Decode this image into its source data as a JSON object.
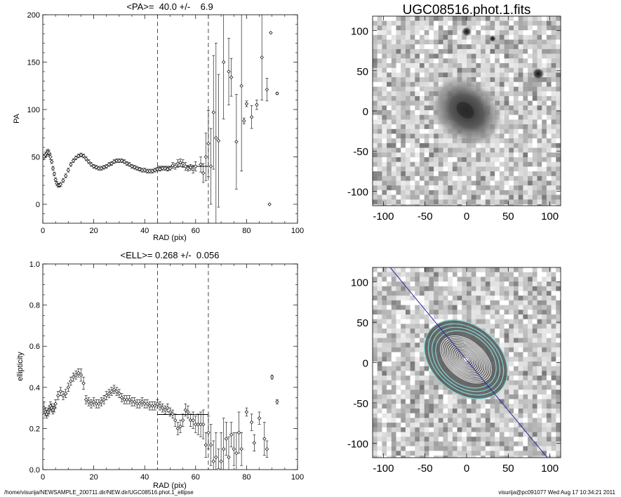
{
  "pa_panel": {
    "title": "<PA>=  40.0 +/-    6.9",
    "xlabel": "RAD (pix)",
    "ylabel": "PA",
    "xticks": [
      "0",
      "20",
      "40",
      "60",
      "80",
      "100"
    ],
    "yticks": [
      "0",
      "50",
      "100",
      "150",
      "200"
    ]
  },
  "ell_panel": {
    "title": "<ELL>= 0.268 +/-  0.056",
    "xlabel": "RAD (pix)",
    "ylabel": "ellipticity",
    "xticks": [
      "0",
      "20",
      "40",
      "60",
      "80",
      "100"
    ],
    "yticks": [
      "0.0",
      "0.2",
      "0.4",
      "0.6",
      "0.8",
      "1.0"
    ]
  },
  "image_panel": {
    "title": "UGC08516.phot.1.fits",
    "xticks": [
      "-100",
      "-50",
      "0",
      "50",
      "100"
    ],
    "yticks": [
      "-100",
      "-50",
      "0",
      "50",
      "100"
    ]
  },
  "contour_panel": {
    "xticks": [
      "-100",
      "-50",
      "0",
      "50",
      "100"
    ],
    "yticks": [
      "-100",
      "-50",
      "0",
      "50",
      "100"
    ]
  },
  "footer": {
    "path": "/home/visurija/NEWSAMPLE_200711.dir/NEW.dir/UGC08516.phot.1_ellipse",
    "user_stamp": "visurija@pc091077  Wed Aug 17 10:34:21 2011"
  },
  "colors": {
    "axis": "#000000",
    "cyan_contours": "#7fd6d6",
    "position_angle_line": "#2a2aa8"
  },
  "chart_data": [
    {
      "type": "scatter",
      "name": "position-angle-profile",
      "title": "<PA>=  40.0 +/-    6.9",
      "xlabel": "RAD (pix)",
      "ylabel": "PA",
      "xlim": [
        0,
        100
      ],
      "ylim": [
        -20,
        200
      ],
      "mean_value": 40.0,
      "mean_error": 6.9,
      "mean_line_x": [
        45,
        65
      ],
      "dashed_lines_x": [
        45,
        65
      ],
      "points": [
        [
          0.5,
          50,
          3
        ],
        [
          1,
          52,
          3
        ],
        [
          1.5,
          54,
          3
        ],
        [
          2,
          55,
          3
        ],
        [
          2.5,
          54,
          3
        ],
        [
          3,
          50,
          3
        ],
        [
          3.5,
          45,
          2
        ],
        [
          4,
          38,
          2
        ],
        [
          4.5,
          32,
          2
        ],
        [
          5,
          26,
          2
        ],
        [
          5.5,
          22,
          2
        ],
        [
          6,
          20,
          2
        ],
        [
          6.5,
          20,
          2
        ],
        [
          7,
          21,
          2
        ],
        [
          8,
          25,
          2
        ],
        [
          9,
          30,
          2
        ],
        [
          10,
          36,
          2
        ],
        [
          11,
          42,
          2
        ],
        [
          12,
          46,
          2
        ],
        [
          13,
          49,
          2
        ],
        [
          14,
          51,
          2
        ],
        [
          15,
          52,
          2
        ],
        [
          16,
          51,
          2
        ],
        [
          17,
          48,
          2
        ],
        [
          18,
          45,
          2
        ],
        [
          19,
          42,
          2
        ],
        [
          20,
          40,
          2
        ],
        [
          21,
          39,
          2
        ],
        [
          22,
          38,
          2
        ],
        [
          23,
          38,
          2
        ],
        [
          24,
          39,
          2
        ],
        [
          25,
          40,
          2
        ],
        [
          26,
          42,
          2
        ],
        [
          27,
          43,
          2
        ],
        [
          28,
          45,
          2
        ],
        [
          29,
          46,
          2
        ],
        [
          30,
          46,
          2
        ],
        [
          31,
          46,
          2
        ],
        [
          32,
          45,
          2
        ],
        [
          33,
          43,
          2
        ],
        [
          34,
          42,
          2
        ],
        [
          35,
          40,
          2
        ],
        [
          36,
          39,
          2
        ],
        [
          37,
          38,
          2
        ],
        [
          38,
          37,
          2
        ],
        [
          39,
          36,
          2
        ],
        [
          40,
          36,
          2
        ],
        [
          41,
          35,
          2
        ],
        [
          42,
          35,
          2
        ],
        [
          43,
          35,
          2
        ],
        [
          44,
          36,
          2
        ],
        [
          45,
          37,
          2
        ],
        [
          46,
          37,
          2
        ],
        [
          47,
          38,
          2
        ],
        [
          48,
          38,
          2
        ],
        [
          49,
          37,
          2
        ],
        [
          50,
          38,
          2
        ],
        [
          51,
          41,
          3
        ],
        [
          52,
          40,
          3
        ],
        [
          53,
          43,
          4
        ],
        [
          54,
          44,
          4
        ],
        [
          55,
          43,
          4
        ],
        [
          56,
          40,
          4
        ],
        [
          57,
          38,
          3
        ],
        [
          58,
          39,
          3
        ],
        [
          59,
          37,
          4
        ],
        [
          60,
          40,
          5
        ],
        [
          62,
          42,
          8
        ],
        [
          63,
          33,
          10
        ],
        [
          64,
          50,
          25
        ],
        [
          65,
          64,
          35
        ],
        [
          66,
          40,
          40
        ],
        [
          67,
          97,
          60
        ],
        [
          68,
          70,
          100
        ],
        [
          69,
          67,
          70
        ],
        [
          71,
          150,
          60
        ],
        [
          73,
          140,
          35
        ],
        [
          74,
          134,
          20
        ],
        [
          76,
          66,
          50
        ],
        [
          78,
          125,
          90
        ],
        [
          79,
          88,
          3
        ],
        [
          80,
          106,
          3
        ],
        [
          82,
          92,
          12
        ],
        [
          84,
          105,
          5
        ],
        [
          86,
          155,
          45
        ],
        [
          88,
          121,
          12
        ],
        [
          89,
          0,
          0
        ],
        [
          89.5,
          181,
          0
        ],
        [
          92,
          117,
          1
        ]
      ]
    },
    {
      "type": "scatter",
      "name": "ellipticity-profile",
      "title": "<ELL>= 0.268 +/-  0.056",
      "xlabel": "RAD (pix)",
      "ylabel": "ellipticity",
      "xlim": [
        0,
        100
      ],
      "ylim": [
        0,
        1
      ],
      "mean_value": 0.268,
      "mean_error": 0.056,
      "mean_line_x": [
        45,
        65
      ],
      "dashed_lines_x": [
        45,
        65
      ],
      "points": [
        [
          0.5,
          0.3,
          0.03
        ],
        [
          1,
          0.28,
          0.02
        ],
        [
          1.5,
          0.27,
          0.02
        ],
        [
          2,
          0.28,
          0.02
        ],
        [
          2.5,
          0.29,
          0.02
        ],
        [
          3,
          0.31,
          0.02
        ],
        [
          3.5,
          0.3,
          0.02
        ],
        [
          4,
          0.29,
          0.02
        ],
        [
          4.5,
          0.3,
          0.02
        ],
        [
          5,
          0.32,
          0.02
        ],
        [
          6,
          0.36,
          0.02
        ],
        [
          7,
          0.38,
          0.02
        ],
        [
          8,
          0.36,
          0.02
        ],
        [
          9,
          0.37,
          0.02
        ],
        [
          10,
          0.4,
          0.02
        ],
        [
          11,
          0.43,
          0.02
        ],
        [
          12,
          0.45,
          0.02
        ],
        [
          13,
          0.46,
          0.02
        ],
        [
          14,
          0.47,
          0.02
        ],
        [
          15,
          0.46,
          0.03
        ],
        [
          16,
          0.42,
          0.03
        ],
        [
          17,
          0.34,
          0.02
        ],
        [
          18,
          0.33,
          0.02
        ],
        [
          19,
          0.32,
          0.02
        ],
        [
          20,
          0.33,
          0.02
        ],
        [
          21,
          0.32,
          0.02
        ],
        [
          22,
          0.32,
          0.02
        ],
        [
          23,
          0.33,
          0.02
        ],
        [
          24,
          0.34,
          0.02
        ],
        [
          25,
          0.36,
          0.02
        ],
        [
          26,
          0.37,
          0.02
        ],
        [
          27,
          0.38,
          0.02
        ],
        [
          28,
          0.39,
          0.02
        ],
        [
          29,
          0.38,
          0.02
        ],
        [
          30,
          0.37,
          0.02
        ],
        [
          31,
          0.35,
          0.02
        ],
        [
          32,
          0.34,
          0.02
        ],
        [
          33,
          0.34,
          0.02
        ],
        [
          34,
          0.34,
          0.02
        ],
        [
          35,
          0.33,
          0.02
        ],
        [
          36,
          0.33,
          0.02
        ],
        [
          37,
          0.32,
          0.02
        ],
        [
          38,
          0.32,
          0.02
        ],
        [
          39,
          0.33,
          0.02
        ],
        [
          40,
          0.32,
          0.02
        ],
        [
          41,
          0.32,
          0.02
        ],
        [
          42,
          0.31,
          0.02
        ],
        [
          43,
          0.31,
          0.02
        ],
        [
          44,
          0.31,
          0.02
        ],
        [
          45,
          0.32,
          0.02
        ],
        [
          46,
          0.31,
          0.02
        ],
        [
          47,
          0.3,
          0.02
        ],
        [
          48,
          0.29,
          0.02
        ],
        [
          49,
          0.3,
          0.02
        ],
        [
          50,
          0.28,
          0.02
        ],
        [
          51,
          0.27,
          0.02
        ],
        [
          52,
          0.24,
          0.03
        ],
        [
          53,
          0.2,
          0.03
        ],
        [
          54,
          0.21,
          0.03
        ],
        [
          55,
          0.24,
          0.03
        ],
        [
          56,
          0.29,
          0.03
        ],
        [
          57,
          0.28,
          0.03
        ],
        [
          58,
          0.24,
          0.03
        ],
        [
          59,
          0.24,
          0.04
        ],
        [
          60,
          0.22,
          0.04
        ],
        [
          61,
          0.22,
          0.05
        ],
        [
          62,
          0.22,
          0.06
        ],
        [
          63,
          0.22,
          0.07
        ],
        [
          64,
          0.12,
          0.06
        ],
        [
          65,
          0.18,
          0.08
        ],
        [
          66,
          0.12,
          0.1
        ],
        [
          67,
          0.04,
          0.1
        ],
        [
          68,
          0.06,
          0.12
        ],
        [
          69,
          0.0,
          0.1
        ],
        [
          70,
          0.04,
          0.14
        ],
        [
          71,
          0.1,
          0.15
        ],
        [
          72,
          0.15,
          0.08
        ],
        [
          73,
          0.06,
          0.1
        ],
        [
          74,
          0.17,
          0.06
        ],
        [
          75,
          0.1,
          0.08
        ],
        [
          76,
          0.08,
          0.1
        ],
        [
          77,
          0.18,
          0.1
        ],
        [
          78,
          0.1,
          0.08
        ],
        [
          80,
          0.28,
          0.02
        ],
        [
          82,
          0.23,
          0.04
        ],
        [
          83,
          0.13,
          0.04
        ],
        [
          85,
          0.25,
          0.03
        ],
        [
          87,
          0.15,
          0.08
        ],
        [
          88,
          0.1,
          0.04
        ],
        [
          90,
          0.45,
          0.01
        ],
        [
          92,
          0.33,
          0.01
        ]
      ]
    }
  ]
}
